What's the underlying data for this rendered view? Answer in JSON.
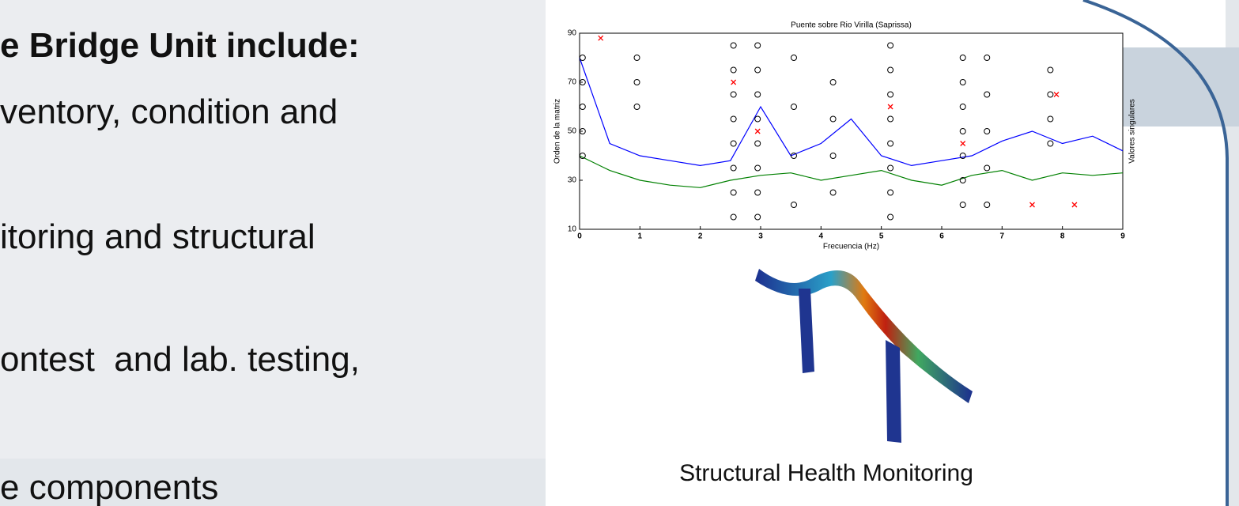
{
  "slide": {
    "heading": "e Bridge Unit include:",
    "bullets": [
      "ventory, condition and",
      "itoring and structural",
      "ontest  and lab. testing,",
      "e components"
    ],
    "caption": "Structural Health  Monitoring"
  },
  "chart_data": {
    "type": "scatter",
    "title": "Puente sobre Rio Virilla (Saprissa)",
    "xlabel": "Frecuencia (Hz)",
    "ylabel": "Orden de la matriz",
    "y2label": "Valores singulares",
    "xlim": [
      0,
      9
    ],
    "ylim": [
      10,
      90
    ],
    "xticks": [
      0,
      1,
      2,
      3,
      4,
      5,
      6,
      7,
      8,
      9
    ],
    "yticks": [
      10,
      30,
      50,
      70,
      90
    ],
    "series": [
      {
        "type": "line",
        "color": "#0000ff",
        "x": [
          0,
          0.5,
          1,
          1.5,
          2,
          2.5,
          3,
          3.5,
          4,
          4.5,
          5,
          5.5,
          6,
          6.5,
          7,
          7.5,
          8,
          8.5,
          9
        ],
        "values": [
          80,
          45,
          40,
          38,
          36,
          38,
          60,
          40,
          45,
          55,
          40,
          36,
          38,
          40,
          46,
          50,
          45,
          48,
          42
        ]
      },
      {
        "type": "line",
        "color": "#008000",
        "x": [
          0,
          0.5,
          1,
          1.5,
          2,
          2.5,
          3,
          3.5,
          4,
          4.5,
          5,
          5.5,
          6,
          6.5,
          7,
          7.5,
          8,
          8.5,
          9
        ],
        "values": [
          40,
          34,
          30,
          28,
          27,
          30,
          32,
          33,
          30,
          32,
          34,
          30,
          28,
          32,
          34,
          30,
          33,
          32,
          33
        ]
      },
      {
        "type": "scatter",
        "marker": "circle",
        "color": "#000000",
        "x": [
          0.05,
          0.05,
          0.05,
          0.05,
          0.05,
          0.95,
          0.95,
          0.95,
          2.55,
          2.55,
          2.55,
          2.55,
          2.55,
          2.55,
          2.55,
          2.55,
          2.95,
          2.95,
          2.95,
          2.95,
          2.95,
          2.95,
          2.95,
          2.95,
          3.55,
          3.55,
          3.55,
          3.55,
          4.2,
          4.2,
          4.2,
          4.2,
          5.15,
          5.15,
          5.15,
          5.15,
          5.15,
          5.15,
          5.15,
          5.15,
          6.35,
          6.35,
          6.35,
          6.35,
          6.35,
          6.35,
          6.35,
          6.75,
          6.75,
          6.75,
          6.75,
          6.75,
          7.8,
          7.8,
          7.8,
          7.8
        ],
        "values": [
          40,
          50,
          60,
          70,
          80,
          60,
          70,
          80,
          15,
          25,
          35,
          45,
          55,
          65,
          75,
          85,
          15,
          25,
          35,
          45,
          55,
          65,
          75,
          85,
          20,
          40,
          60,
          80,
          25,
          40,
          55,
          70,
          15,
          25,
          35,
          45,
          55,
          65,
          75,
          85,
          20,
          30,
          40,
          50,
          60,
          70,
          80,
          20,
          35,
          50,
          65,
          80,
          45,
          55,
          65,
          75
        ]
      },
      {
        "type": "scatter",
        "marker": "cross",
        "color": "#ff0000",
        "x": [
          2.95,
          5.15,
          6.35,
          2.55,
          7.9,
          8.2,
          7.5,
          0.35
        ],
        "values": [
          50,
          60,
          45,
          70,
          65,
          20,
          20,
          88
        ]
      }
    ]
  }
}
